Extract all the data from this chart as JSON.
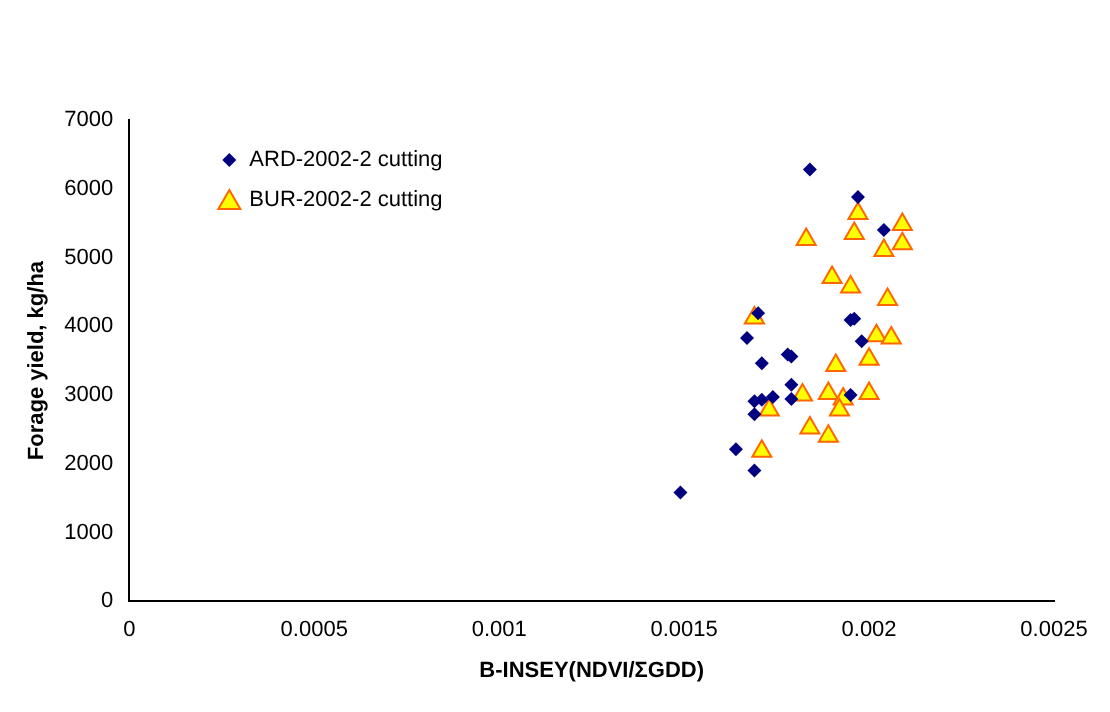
{
  "chart_data": {
    "type": "scatter",
    "xlabel": "B-INSEY(NDVI/ΣGDD)",
    "ylabel": "Forage yield, kg/ha",
    "xlim": [
      0,
      0.0025
    ],
    "xticks": [
      0,
      0.0005,
      0.001,
      0.0015,
      0.002,
      0.0025
    ],
    "ylim": [
      0,
      7000
    ],
    "yticks": [
      0,
      1000,
      2000,
      3000,
      4000,
      5000,
      6000,
      7000
    ],
    "grid": false,
    "legend": "top left",
    "series": [
      {
        "name": "ARD-2002-2 cutting",
        "color": "#000080",
        "marker": "diamond",
        "x": [
          0.00184,
          0.00197,
          0.00204,
          0.0017,
          0.00167,
          0.00196,
          0.00195,
          0.00198,
          0.00171,
          0.00178,
          0.00179,
          0.00179,
          0.00174,
          0.00169,
          0.00171,
          0.00179,
          0.00169,
          0.00195,
          0.00164,
          0.00169,
          0.00149
        ],
        "values": [
          6280,
          5880,
          5400,
          4190,
          3830,
          4110,
          4090,
          3780,
          3460,
          3590,
          3560,
          3150,
          2970,
          2910,
          2930,
          2940,
          2720,
          3000,
          2210,
          1900,
          1580
        ]
      },
      {
        "name": "BUR-2002-2 cutting",
        "color": "#ffff00",
        "marker": "triangle",
        "x": [
          0.00197,
          0.00209,
          0.00196,
          0.00183,
          0.00209,
          0.00204,
          0.0019,
          0.00195,
          0.00205,
          0.00169,
          0.00202,
          0.00206,
          0.002,
          0.00191,
          0.00182,
          0.00189,
          0.002,
          0.00193,
          0.00173,
          0.00192,
          0.00184,
          0.00189,
          0.00171
        ],
        "values": [
          5640,
          5480,
          5350,
          5260,
          5200,
          5100,
          4710,
          4570,
          4390,
          4120,
          3860,
          3830,
          3520,
          3430,
          3000,
          3020,
          3020,
          2940,
          2780,
          2780,
          2520,
          2400,
          2180
        ]
      }
    ]
  }
}
